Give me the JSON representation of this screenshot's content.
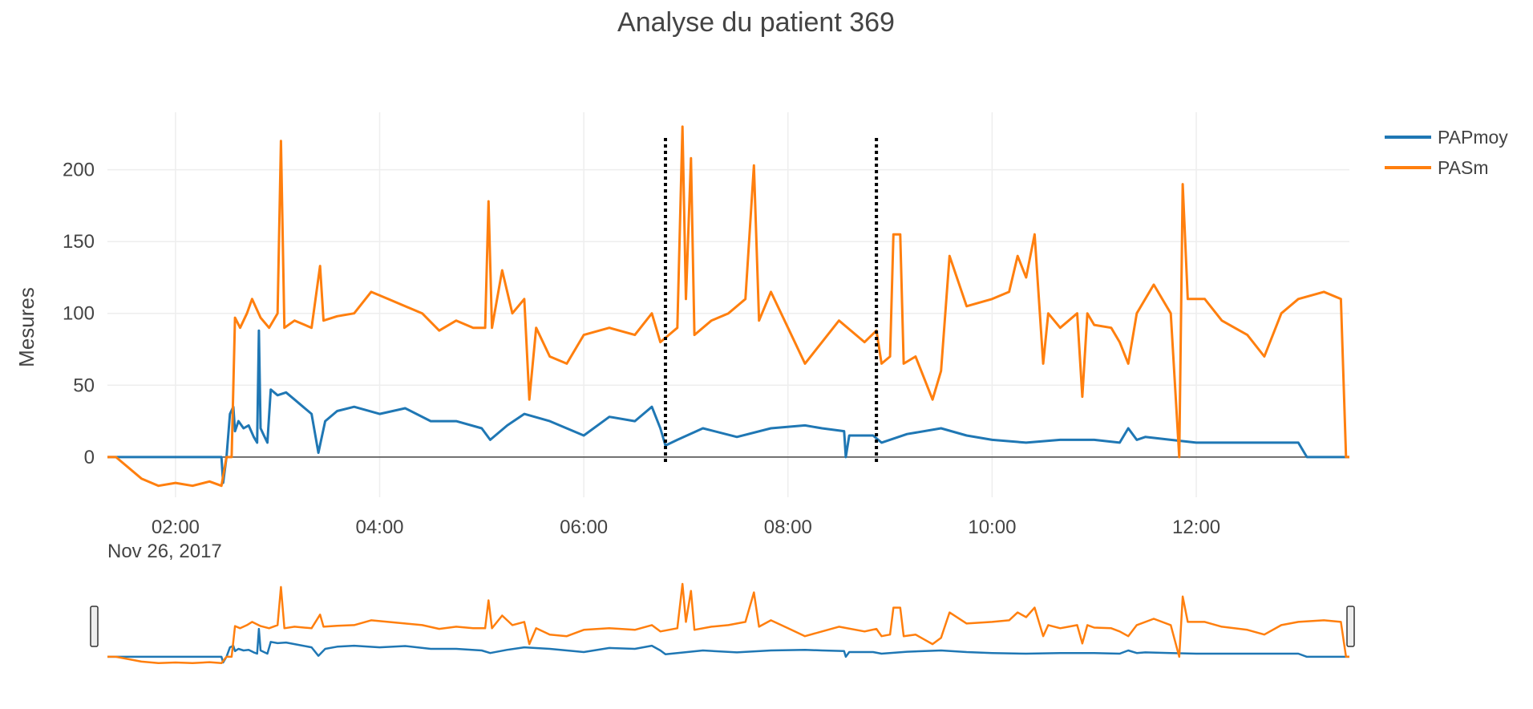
{
  "chart_data": {
    "type": "line",
    "title": "Analyse du patient 369",
    "ylabel": "Mesures",
    "xlabel": "",
    "x_range": [
      "2017-11-26T01:20",
      "2017-11-26T13:30"
    ],
    "ylim": [
      -28,
      240
    ],
    "x_ticks": [
      "02:00",
      "04:00",
      "06:00",
      "08:00",
      "10:00",
      "12:00"
    ],
    "x_tick_values": [
      "2017-11-26T02:00",
      "2017-11-26T04:00",
      "2017-11-26T06:00",
      "2017-11-26T08:00",
      "2017-11-26T10:00",
      "2017-11-26T12:00"
    ],
    "x_date_label": "Nov 26, 2017",
    "y_ticks": [
      0,
      50,
      100,
      150,
      200
    ],
    "grid": true,
    "legend_position": "top-right",
    "range_slider": true,
    "vlines": [
      {
        "x": "2017-11-26T06:48",
        "style": "dotted",
        "color": "#000000"
      },
      {
        "x": "2017-11-26T08:52",
        "style": "dotted",
        "color": "#000000"
      }
    ],
    "series": [
      {
        "name": "PAPmoy",
        "color": "#1f77b4",
        "points": [
          [
            "2017-11-26T01:20",
            0
          ],
          [
            "2017-11-26T02:20",
            0
          ],
          [
            "2017-11-26T02:27",
            0
          ],
          [
            "2017-11-26T02:28",
            -18
          ],
          [
            "2017-11-26T02:30",
            0
          ],
          [
            "2017-11-26T02:32",
            30
          ],
          [
            "2017-11-26T02:34",
            35
          ],
          [
            "2017-11-26T02:35",
            18
          ],
          [
            "2017-11-26T02:37",
            25
          ],
          [
            "2017-11-26T02:40",
            20
          ],
          [
            "2017-11-26T02:43",
            22
          ],
          [
            "2017-11-26T02:46",
            14
          ],
          [
            "2017-11-26T02:48",
            10
          ],
          [
            "2017-11-26T02:49",
            88
          ],
          [
            "2017-11-26T02:50",
            20
          ],
          [
            "2017-11-26T02:52",
            15
          ],
          [
            "2017-11-26T02:54",
            10
          ],
          [
            "2017-11-26T02:56",
            47
          ],
          [
            "2017-11-26T03:00",
            43
          ],
          [
            "2017-11-26T03:05",
            45
          ],
          [
            "2017-11-26T03:10",
            40
          ],
          [
            "2017-11-26T03:15",
            35
          ],
          [
            "2017-11-26T03:20",
            30
          ],
          [
            "2017-11-26T03:24",
            3
          ],
          [
            "2017-11-26T03:28",
            25
          ],
          [
            "2017-11-26T03:35",
            32
          ],
          [
            "2017-11-26T03:45",
            35
          ],
          [
            "2017-11-26T04:00",
            30
          ],
          [
            "2017-11-26T04:15",
            34
          ],
          [
            "2017-11-26T04:30",
            25
          ],
          [
            "2017-11-26T04:45",
            25
          ],
          [
            "2017-11-26T05:00",
            20
          ],
          [
            "2017-11-26T05:05",
            12
          ],
          [
            "2017-11-26T05:15",
            22
          ],
          [
            "2017-11-26T05:25",
            30
          ],
          [
            "2017-11-26T05:40",
            25
          ],
          [
            "2017-11-26T06:00",
            15
          ],
          [
            "2017-11-26T06:15",
            28
          ],
          [
            "2017-11-26T06:30",
            25
          ],
          [
            "2017-11-26T06:40",
            35
          ],
          [
            "2017-11-26T06:45",
            20
          ],
          [
            "2017-11-26T06:48",
            8
          ],
          [
            "2017-11-26T06:55",
            12
          ],
          [
            "2017-11-26T07:10",
            20
          ],
          [
            "2017-11-26T07:30",
            14
          ],
          [
            "2017-11-26T07:50",
            20
          ],
          [
            "2017-11-26T08:10",
            22
          ],
          [
            "2017-11-26T08:20",
            20
          ],
          [
            "2017-11-26T08:33",
            18
          ],
          [
            "2017-11-26T08:34",
            0
          ],
          [
            "2017-11-26T08:36",
            15
          ],
          [
            "2017-11-26T08:50",
            15
          ],
          [
            "2017-11-26T08:55",
            10
          ],
          [
            "2017-11-26T09:10",
            16
          ],
          [
            "2017-11-26T09:30",
            20
          ],
          [
            "2017-11-26T09:45",
            15
          ],
          [
            "2017-11-26T10:00",
            12
          ],
          [
            "2017-11-26T10:20",
            10
          ],
          [
            "2017-11-26T10:40",
            12
          ],
          [
            "2017-11-26T11:00",
            12
          ],
          [
            "2017-11-26T11:15",
            10
          ],
          [
            "2017-11-26T11:20",
            20
          ],
          [
            "2017-11-26T11:25",
            12
          ],
          [
            "2017-11-26T11:30",
            14
          ],
          [
            "2017-11-26T11:45",
            12
          ],
          [
            "2017-11-26T12:00",
            10
          ],
          [
            "2017-11-26T12:30",
            10
          ],
          [
            "2017-11-26T12:55",
            10
          ],
          [
            "2017-11-26T13:00",
            10
          ],
          [
            "2017-11-26T13:05",
            0
          ],
          [
            "2017-11-26T13:30",
            0
          ]
        ]
      },
      {
        "name": "PASm",
        "color": "#ff7f0e",
        "points": [
          [
            "2017-11-26T01:20",
            0
          ],
          [
            "2017-11-26T01:25",
            0
          ],
          [
            "2017-11-26T01:40",
            -15
          ],
          [
            "2017-11-26T01:50",
            -20
          ],
          [
            "2017-11-26T02:00",
            -18
          ],
          [
            "2017-11-26T02:10",
            -20
          ],
          [
            "2017-11-26T02:20",
            -17
          ],
          [
            "2017-11-26T02:27",
            -20
          ],
          [
            "2017-11-26T02:30",
            0
          ],
          [
            "2017-11-26T02:33",
            0
          ],
          [
            "2017-11-26T02:35",
            97
          ],
          [
            "2017-11-26T02:38",
            90
          ],
          [
            "2017-11-26T02:42",
            100
          ],
          [
            "2017-11-26T02:45",
            110
          ],
          [
            "2017-11-26T02:50",
            97
          ],
          [
            "2017-11-26T02:55",
            90
          ],
          [
            "2017-11-26T03:00",
            100
          ],
          [
            "2017-11-26T03:02",
            220
          ],
          [
            "2017-11-26T03:04",
            90
          ],
          [
            "2017-11-26T03:10",
            95
          ],
          [
            "2017-11-26T03:20",
            90
          ],
          [
            "2017-11-26T03:25",
            133
          ],
          [
            "2017-11-26T03:27",
            95
          ],
          [
            "2017-11-26T03:35",
            98
          ],
          [
            "2017-11-26T03:45",
            100
          ],
          [
            "2017-11-26T03:55",
            115
          ],
          [
            "2017-11-26T04:05",
            110
          ],
          [
            "2017-11-26T04:15",
            105
          ],
          [
            "2017-11-26T04:25",
            100
          ],
          [
            "2017-11-26T04:35",
            88
          ],
          [
            "2017-11-26T04:45",
            95
          ],
          [
            "2017-11-26T04:55",
            90
          ],
          [
            "2017-11-26T05:02",
            90
          ],
          [
            "2017-11-26T05:04",
            178
          ],
          [
            "2017-11-26T05:06",
            90
          ],
          [
            "2017-11-26T05:12",
            130
          ],
          [
            "2017-11-26T05:18",
            100
          ],
          [
            "2017-11-26T05:25",
            110
          ],
          [
            "2017-11-26T05:28",
            40
          ],
          [
            "2017-11-26T05:32",
            90
          ],
          [
            "2017-11-26T05:40",
            70
          ],
          [
            "2017-11-26T05:50",
            65
          ],
          [
            "2017-11-26T06:00",
            85
          ],
          [
            "2017-11-26T06:15",
            90
          ],
          [
            "2017-11-26T06:30",
            85
          ],
          [
            "2017-11-26T06:40",
            100
          ],
          [
            "2017-11-26T06:45",
            80
          ],
          [
            "2017-11-26T06:50",
            85
          ],
          [
            "2017-11-26T06:55",
            90
          ],
          [
            "2017-11-26T06:58",
            230
          ],
          [
            "2017-11-26T07:00",
            110
          ],
          [
            "2017-11-26T07:03",
            208
          ],
          [
            "2017-11-26T07:05",
            85
          ],
          [
            "2017-11-26T07:15",
            95
          ],
          [
            "2017-11-26T07:25",
            100
          ],
          [
            "2017-11-26T07:35",
            110
          ],
          [
            "2017-11-26T07:40",
            203
          ],
          [
            "2017-11-26T07:43",
            95
          ],
          [
            "2017-11-26T07:50",
            115
          ],
          [
            "2017-11-26T08:00",
            90
          ],
          [
            "2017-11-26T08:10",
            65
          ],
          [
            "2017-11-26T08:20",
            80
          ],
          [
            "2017-11-26T08:30",
            95
          ],
          [
            "2017-11-26T08:45",
            80
          ],
          [
            "2017-11-26T08:52",
            88
          ],
          [
            "2017-11-26T08:55",
            65
          ],
          [
            "2017-11-26T09:00",
            70
          ],
          [
            "2017-11-26T09:02",
            155
          ],
          [
            "2017-11-26T09:06",
            155
          ],
          [
            "2017-11-26T09:08",
            65
          ],
          [
            "2017-11-26T09:15",
            70
          ],
          [
            "2017-11-26T09:20",
            55
          ],
          [
            "2017-11-26T09:25",
            40
          ],
          [
            "2017-11-26T09:30",
            60
          ],
          [
            "2017-11-26T09:35",
            140
          ],
          [
            "2017-11-26T09:45",
            105
          ],
          [
            "2017-11-26T10:00",
            110
          ],
          [
            "2017-11-26T10:10",
            115
          ],
          [
            "2017-11-26T10:15",
            140
          ],
          [
            "2017-11-26T10:20",
            125
          ],
          [
            "2017-11-26T10:25",
            155
          ],
          [
            "2017-11-26T10:30",
            65
          ],
          [
            "2017-11-26T10:33",
            100
          ],
          [
            "2017-11-26T10:40",
            90
          ],
          [
            "2017-11-26T10:45",
            95
          ],
          [
            "2017-11-26T10:50",
            100
          ],
          [
            "2017-11-26T10:53",
            42
          ],
          [
            "2017-11-26T10:56",
            100
          ],
          [
            "2017-11-26T11:00",
            92
          ],
          [
            "2017-11-26T11:10",
            90
          ],
          [
            "2017-11-26T11:15",
            80
          ],
          [
            "2017-11-26T11:20",
            65
          ],
          [
            "2017-11-26T11:25",
            100
          ],
          [
            "2017-11-26T11:35",
            120
          ],
          [
            "2017-11-26T11:45",
            100
          ],
          [
            "2017-11-26T11:50",
            0
          ],
          [
            "2017-11-26T11:52",
            190
          ],
          [
            "2017-11-26T11:55",
            110
          ],
          [
            "2017-11-26T12:05",
            110
          ],
          [
            "2017-11-26T12:15",
            95
          ],
          [
            "2017-11-26T12:30",
            85
          ],
          [
            "2017-11-26T12:40",
            70
          ],
          [
            "2017-11-26T12:50",
            100
          ],
          [
            "2017-11-26T13:00",
            110
          ],
          [
            "2017-11-26T13:15",
            115
          ],
          [
            "2017-11-26T13:25",
            110
          ],
          [
            "2017-11-26T13:28",
            0
          ],
          [
            "2017-11-26T13:30",
            0
          ]
        ]
      }
    ]
  }
}
